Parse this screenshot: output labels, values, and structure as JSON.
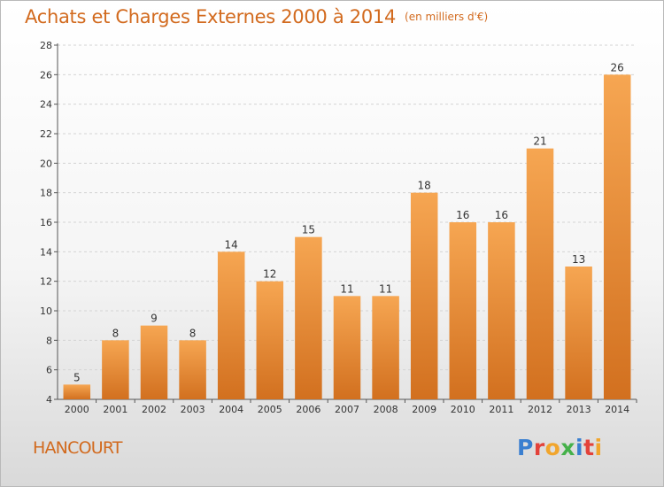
{
  "header": {
    "title": "Achats et Charges Externes 2000 à 2014",
    "unit": "(en milliers d'€)"
  },
  "commune": "HANCOURT",
  "logo": {
    "text": "Proxiti",
    "letter_colors": [
      "#3a7fd0",
      "#e3423a",
      "#f1a52c",
      "#45b14a",
      "#3a7fd0",
      "#e3423a",
      "#f1a52c"
    ]
  },
  "colors": {
    "bar_light": "#f6a652",
    "bar_dark": "#d2701f",
    "accent_text": "#d26a1e",
    "grid": "#d4d4d4"
  },
  "chart_data": {
    "type": "bar",
    "title": "Achats et Charges Externes 2000 à 2014",
    "subtitle": "(en milliers d'€)",
    "categories": [
      "2000",
      "2001",
      "2002",
      "2003",
      "2004",
      "2005",
      "2006",
      "2007",
      "2008",
      "2009",
      "2010",
      "2011",
      "2012",
      "2013",
      "2014"
    ],
    "values": [
      5,
      8,
      9,
      8,
      14,
      12,
      15,
      11,
      11,
      18,
      16,
      16,
      21,
      13,
      26
    ],
    "ylim": [
      4,
      28
    ],
    "yticks": [
      4,
      6,
      8,
      10,
      12,
      14,
      16,
      18,
      20,
      22,
      24,
      26,
      28
    ],
    "grid": "horizontal dashed",
    "data_labels": true,
    "legend": "none"
  }
}
